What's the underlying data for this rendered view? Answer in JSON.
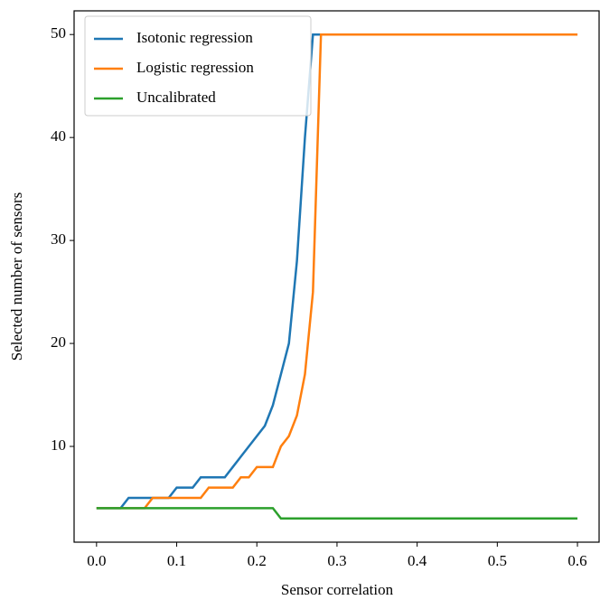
{
  "chart_data": {
    "type": "line",
    "x_label": "Sensor correlation",
    "y_label": "Selected number of sensors",
    "x": [
      0,
      0.01,
      0.02,
      0.03,
      0.04,
      0.05,
      0.06,
      0.07,
      0.08,
      0.09,
      0.1,
      0.11,
      0.12,
      0.13,
      0.14,
      0.15,
      0.16,
      0.17,
      0.18,
      0.19,
      0.2,
      0.21,
      0.22,
      0.23,
      0.24,
      0.25,
      0.26,
      0.27,
      0.28,
      0.29,
      0.3,
      0.6
    ],
    "series": [
      {
        "name": "Isotonic regression",
        "color": "#1f77b4",
        "values": [
          4,
          4,
          4,
          4,
          5,
          5,
          5,
          5,
          5,
          5,
          6,
          6,
          6,
          7,
          7,
          7,
          7,
          8,
          9,
          10,
          11,
          12,
          14,
          17,
          20,
          28,
          40,
          50,
          50,
          50,
          50,
          50
        ]
      },
      {
        "name": "Logistic regression",
        "color": "#ff7f0e",
        "values": [
          4,
          4,
          4,
          4,
          4,
          4,
          4,
          5,
          5,
          5,
          5,
          5,
          5,
          5,
          6,
          6,
          6,
          6,
          7,
          7,
          8,
          8,
          8,
          10,
          11,
          13,
          17,
          25,
          50,
          50,
          50,
          50
        ]
      },
      {
        "name": "Uncalibrated",
        "color": "#2ca02c",
        "values": [
          4,
          4,
          4,
          4,
          4,
          4,
          4,
          4,
          4,
          4,
          4,
          4,
          4,
          4,
          4,
          4,
          4,
          4,
          4,
          4,
          4,
          4,
          4,
          3,
          3,
          3,
          3,
          3,
          3,
          3,
          3,
          3
        ]
      }
    ],
    "xlim": [
      -0.028,
      0.627
    ],
    "ylim": [
      0.7,
      52.3
    ],
    "xticks": [
      {
        "value": 0,
        "label": "0.0"
      },
      0.1,
      0.2,
      0.3,
      0.4,
      0.5,
      0.6
    ],
    "yticks": [
      10,
      20,
      30,
      40,
      50
    ],
    "legend": "upper left"
  }
}
